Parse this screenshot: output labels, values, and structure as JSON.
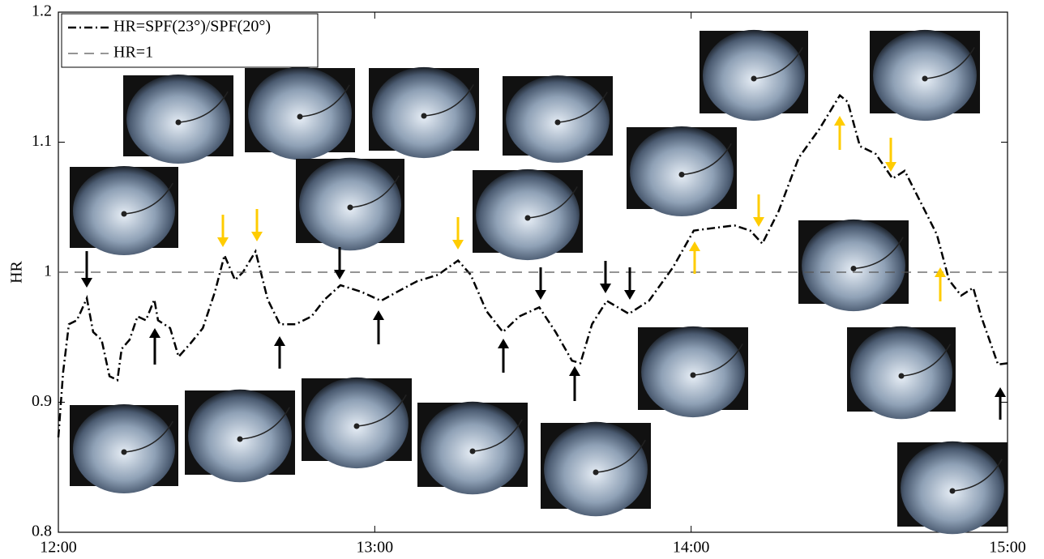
{
  "chart_data": {
    "type": "line",
    "y_label": "HR",
    "xlim": [
      0,
      180
    ],
    "xticks": [
      {
        "value": 0,
        "label": "12:00"
      },
      {
        "value": 60,
        "label": "13:00"
      },
      {
        "value": 120,
        "label": "14:00"
      },
      {
        "value": 180,
        "label": "15:00"
      }
    ],
    "ylim": [
      0.8,
      1.2
    ],
    "yticks": [
      0.8,
      0.9,
      1,
      1.1,
      1.2
    ],
    "legend": "top-left",
    "series": [
      {
        "name": "HR=SPF(23°)/SPF(20°)",
        "color": "#000000",
        "style": "dashdot",
        "x": [
          0,
          0.9,
          2,
          3.5,
          4.3,
          5.4,
          6.6,
          8.2,
          9.7,
          11.2,
          12,
          13.5,
          15,
          16.6,
          18.2,
          18.9,
          21.2,
          22.8,
          25,
          27.4,
          29.7,
          31.5,
          33.5,
          35,
          37.4,
          39.7,
          42,
          45,
          48,
          50.5,
          53.5,
          57.4,
          61.2,
          64.3,
          68,
          72,
          75.8,
          78.2,
          81.2,
          84.3,
          87.4,
          91.2,
          94.3,
          97.4,
          99,
          101.2,
          104,
          108.2,
          112,
          116.6,
          120.5,
          124.3,
          128.2,
          131.2,
          133.5,
          136.6,
          140.4,
          144.3,
          148.2,
          149.7,
          152,
          155,
          158.2,
          160.5,
          163.5,
          166.6,
          168.9,
          171.2,
          173.5,
          175,
          178.2,
          180
        ],
        "values": [
          0.873,
          0.923,
          0.96,
          0.963,
          0.97,
          0.98,
          0.954,
          0.948,
          0.92,
          0.917,
          0.941,
          0.948,
          0.966,
          0.963,
          0.979,
          0.963,
          0.957,
          0.935,
          0.945,
          0.957,
          0.985,
          1.013,
          0.994,
          1.0,
          1.016,
          0.979,
          0.96,
          0.96,
          0.966,
          0.979,
          0.99,
          0.985,
          0.978,
          0.985,
          0.993,
          0.998,
          1.009,
          0.998,
          0.97,
          0.954,
          0.966,
          0.973,
          0.954,
          0.932,
          0.93,
          0.96,
          0.978,
          0.968,
          0.978,
          1.004,
          1.032,
          1.034,
          1.036,
          1.032,
          1.022,
          1.047,
          1.088,
          1.11,
          1.136,
          1.131,
          1.097,
          1.091,
          1.072,
          1.078,
          1.054,
          1.029,
          0.994,
          0.982,
          0.988,
          0.966,
          0.929,
          0.93
        ]
      },
      {
        "name": "HR=1",
        "color": "#555555",
        "style": "dashed",
        "x": [
          0,
          180
        ],
        "values": [
          1,
          1
        ]
      }
    ]
  }
}
